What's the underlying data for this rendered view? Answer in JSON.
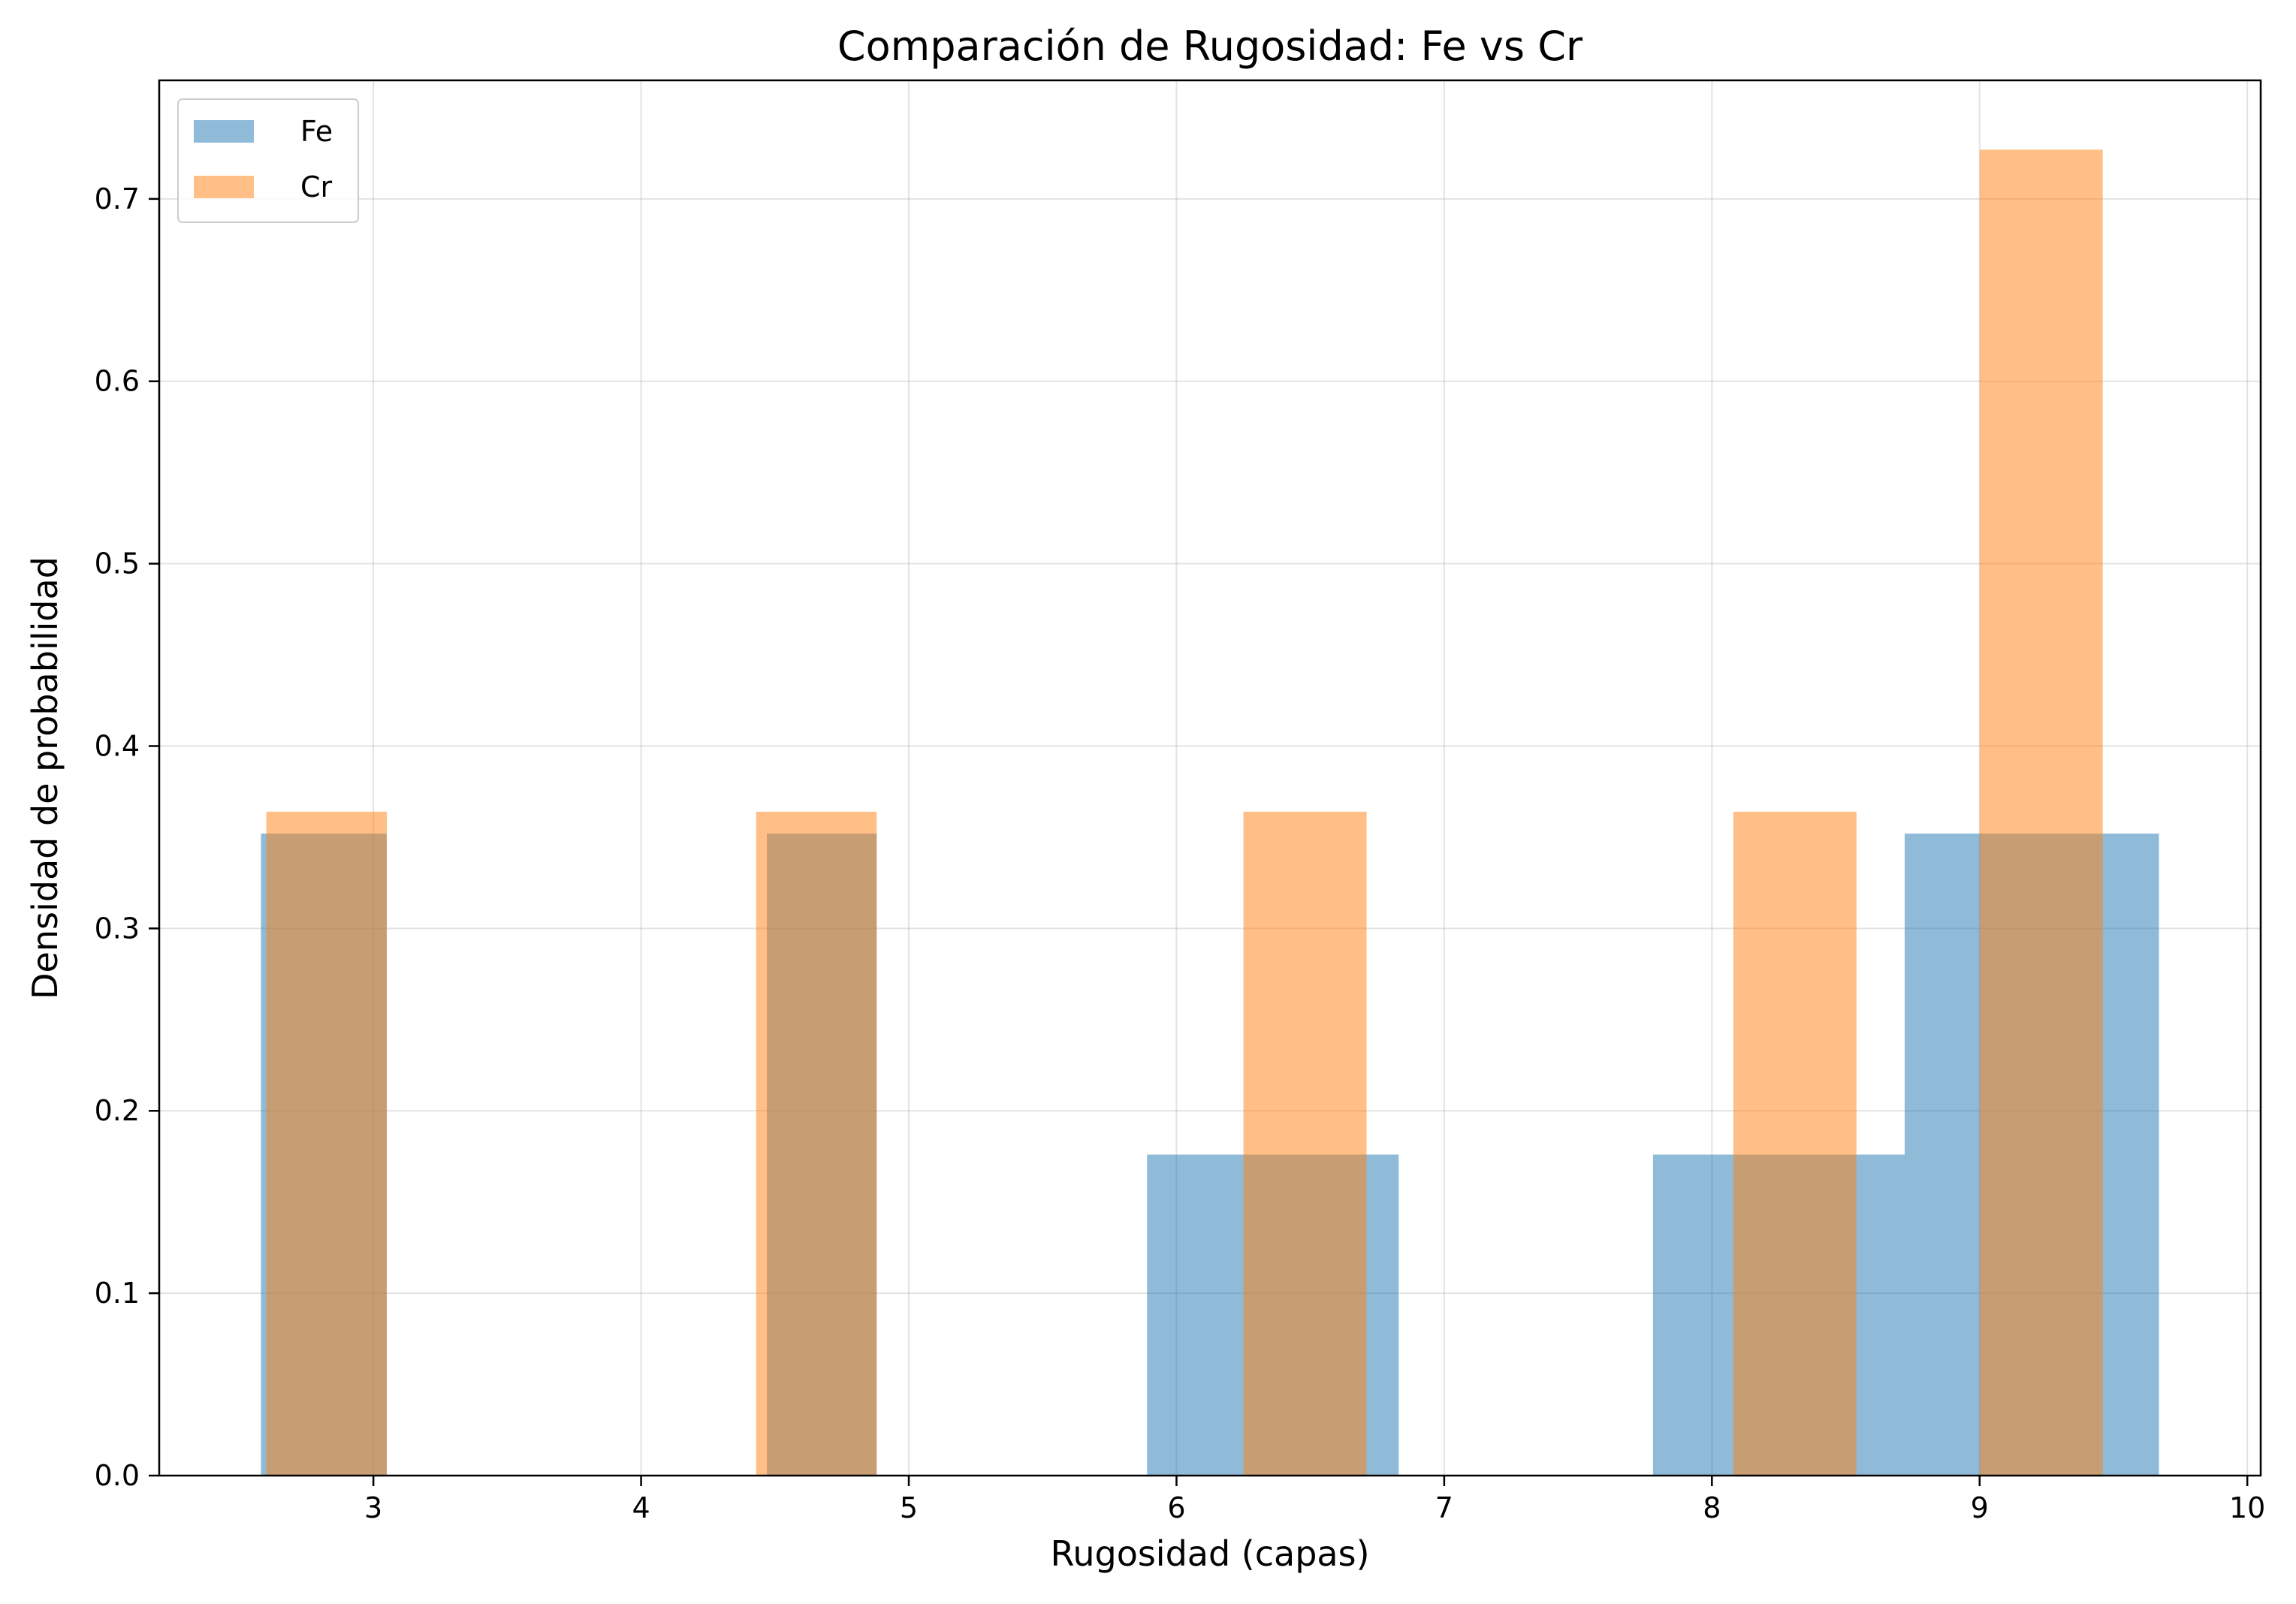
{
  "chart_data": {
    "type": "histogram",
    "title": "Comparación de Rugosidad: Fe vs Cr",
    "xlabel": "Rugosidad (capas)",
    "ylabel": "Densidad de probabilidad",
    "xlim": [
      2.2,
      10.05
    ],
    "ylim": [
      0,
      0.765
    ],
    "xticks": [
      3,
      4,
      5,
      6,
      7,
      8,
      9,
      10
    ],
    "yticks": [
      0.0,
      0.1,
      0.2,
      0.3,
      0.4,
      0.5,
      0.6,
      0.7
    ],
    "ytick_labels": [
      "0.0",
      "0.1",
      "0.2",
      "0.3",
      "0.4",
      "0.5",
      "0.6",
      "0.7"
    ],
    "grid": true,
    "legend_position": "top-left",
    "series": [
      {
        "name": "Fe",
        "color": "#1f77b4",
        "opacity": 0.5,
        "bins": [
          {
            "x0": 2.58,
            "x1": 3.05,
            "value": 0.352
          },
          {
            "x0": 4.47,
            "x1": 4.88,
            "value": 0.352
          },
          {
            "x0": 5.89,
            "x1": 6.36,
            "value": 0.176
          },
          {
            "x0": 6.36,
            "x1": 6.83,
            "value": 0.176
          },
          {
            "x0": 7.78,
            "x1": 8.25,
            "value": 0.176
          },
          {
            "x0": 8.25,
            "x1": 8.72,
            "value": 0.176
          },
          {
            "x0": 8.72,
            "x1": 9.19,
            "value": 0.352
          },
          {
            "x0": 9.19,
            "x1": 9.67,
            "value": 0.352
          }
        ]
      },
      {
        "name": "Cr",
        "color": "#ff7f0e",
        "opacity": 0.5,
        "bins": [
          {
            "x0": 2.6,
            "x1": 3.05,
            "value": 0.364
          },
          {
            "x0": 4.43,
            "x1": 4.88,
            "value": 0.364
          },
          {
            "x0": 6.25,
            "x1": 6.71,
            "value": 0.364
          },
          {
            "x0": 8.08,
            "x1": 8.54,
            "value": 0.364
          },
          {
            "x0": 9.0,
            "x1": 9.46,
            "value": 0.727
          }
        ]
      }
    ]
  }
}
